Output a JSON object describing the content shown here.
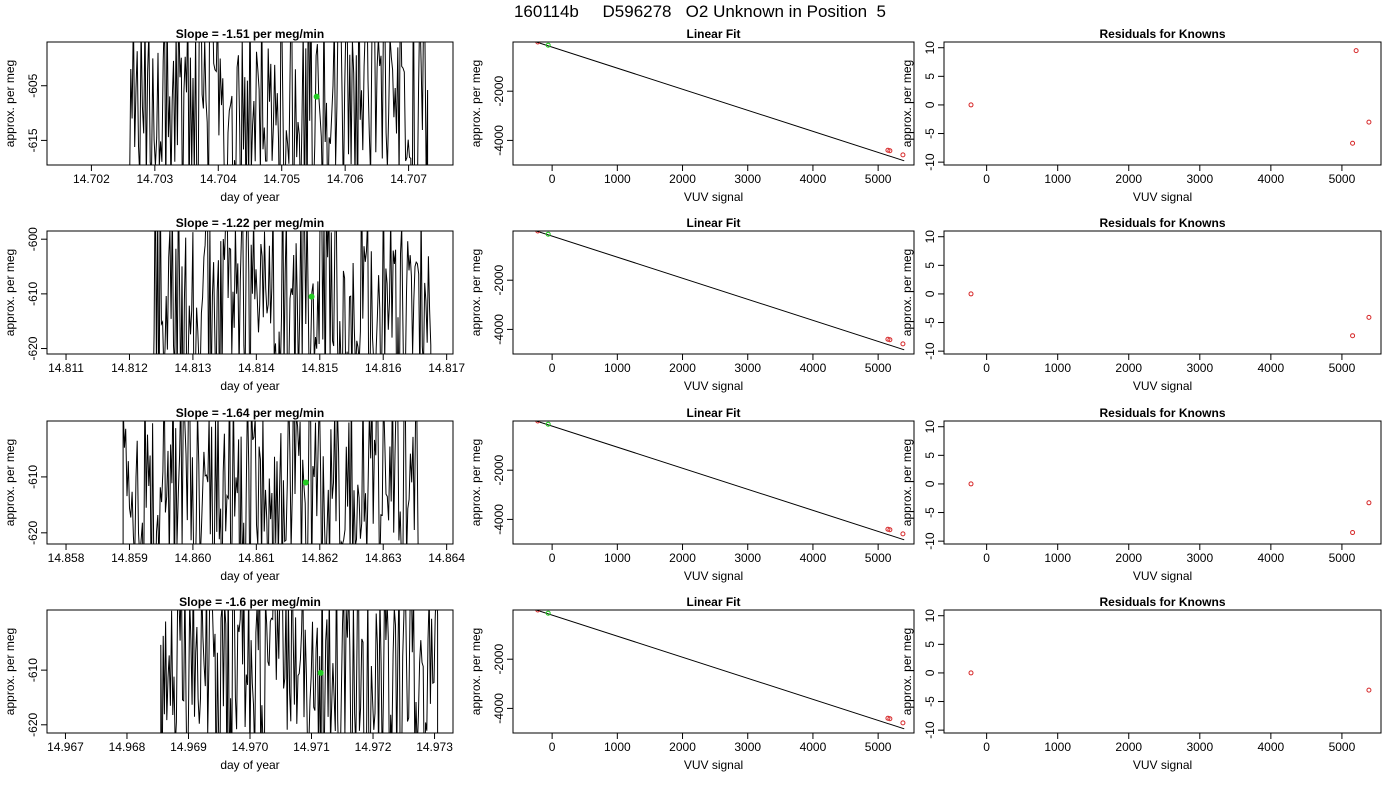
{
  "figure": {
    "title": "160114b     D596278   O2 Unknown in Position  5"
  },
  "style": {
    "trace": "#000000",
    "known_point": "#d62728",
    "unknown_point": "#22cc22",
    "fit_line": "#000000"
  },
  "chart_data": [
    {
      "type": "line",
      "row": 0,
      "panel": "time-series",
      "title": "Slope =  -1.51  per meg/min",
      "xlabel": "day of year",
      "ylabel": "approx. per meg",
      "xlim": [
        14.7013,
        14.7077
      ],
      "ylim": [
        -619.5,
        -597
      ],
      "xticks": [
        14.702,
        14.703,
        14.704,
        14.705,
        14.706,
        14.707
      ],
      "xtick_labels": [
        "14.702",
        "14.703",
        "14.704",
        "14.705",
        "14.706",
        "14.707"
      ],
      "yticks": [
        -605,
        -615
      ],
      "ytick_labels": [
        "-605",
        "-615"
      ],
      "trace_x_range": [
        14.7026,
        14.7073
      ],
      "highlight": {
        "x": 14.70555,
        "y": -607
      }
    },
    {
      "type": "scatter",
      "row": 0,
      "panel": "linear-fit",
      "title": "Linear Fit",
      "xlabel": "VUV signal",
      "ylabel": "approx. per meg",
      "xlim": [
        -600,
        5550
      ],
      "ylim": [
        -5000,
        0
      ],
      "xticks": [
        0,
        1000,
        2000,
        3000,
        4000,
        5000
      ],
      "xtick_labels": [
        "0",
        "1000",
        "2000",
        "3000",
        "4000",
        "5000"
      ],
      "yticks": [
        -2000,
        -4000
      ],
      "ytick_labels": [
        "-2000",
        "-4000"
      ],
      "fit_line": {
        "x": [
          -500,
          5400
        ],
        "y": [
          220,
          -4830
        ]
      },
      "knowns": {
        "x": [
          -220,
          5150,
          5180,
          5380
        ],
        "y": [
          0,
          -4400,
          -4420,
          -4590
        ]
      },
      "unknown": {
        "x": [
          -60
        ],
        "y": [
          -130
        ]
      }
    },
    {
      "type": "scatter",
      "row": 0,
      "panel": "residuals",
      "title": "Residuals for Knowns",
      "xlabel": "VUV signal",
      "ylabel": "approx. per meg",
      "xlim": [
        -600,
        5550
      ],
      "ylim": [
        -10.5,
        11
      ],
      "xticks": [
        0,
        1000,
        2000,
        3000,
        4000,
        5000
      ],
      "xtick_labels": [
        "0",
        "1000",
        "2000",
        "3000",
        "4000",
        "5000"
      ],
      "yticks": [
        10,
        5,
        0,
        -5,
        -10
      ],
      "ytick_labels": [
        "10",
        "5",
        "0",
        "-5",
        "-10"
      ],
      "points": {
        "x": [
          -220,
          5200,
          5150,
          5380
        ],
        "y": [
          0,
          9.5,
          -6.7,
          -3
        ]
      }
    },
    {
      "type": "line",
      "row": 1,
      "panel": "time-series",
      "title": "Slope =  -1.22  per meg/min",
      "xlabel": "day of year",
      "ylabel": "approx. per meg",
      "xlim": [
        14.8107,
        14.8171
      ],
      "ylim": [
        -621,
        -598.5
      ],
      "xticks": [
        14.811,
        14.812,
        14.813,
        14.814,
        14.815,
        14.816,
        14.817
      ],
      "xtick_labels": [
        "14.811",
        "14.812",
        "14.813",
        "14.814",
        "14.815",
        "14.816",
        "14.817"
      ],
      "yticks": [
        -600,
        -610,
        -620
      ],
      "ytick_labels": [
        "-600",
        "-610",
        "-620"
      ],
      "trace_x_range": [
        14.81235,
        14.81675
      ],
      "highlight": {
        "x": 14.81487,
        "y": -610.5
      }
    },
    {
      "type": "scatter",
      "row": 1,
      "panel": "linear-fit",
      "title": "Linear Fit",
      "xlabel": "VUV signal",
      "ylabel": "approx. per meg",
      "xlim": [
        -600,
        5550
      ],
      "ylim": [
        -5000,
        0
      ],
      "xticks": [
        0,
        1000,
        2000,
        3000,
        4000,
        5000
      ],
      "xtick_labels": [
        "0",
        "1000",
        "2000",
        "3000",
        "4000",
        "5000"
      ],
      "yticks": [
        -2000,
        -4000
      ],
      "ytick_labels": [
        "-2000",
        "-4000"
      ],
      "fit_line": {
        "x": [
          -500,
          5400
        ],
        "y": [
          220,
          -4830
        ]
      },
      "knowns": {
        "x": [
          -220,
          5150,
          5180,
          5380
        ],
        "y": [
          0,
          -4400,
          -4420,
          -4590
        ]
      },
      "unknown": {
        "x": [
          -60
        ],
        "y": [
          -130
        ]
      }
    },
    {
      "type": "scatter",
      "row": 1,
      "panel": "residuals",
      "title": "Residuals for Knowns",
      "xlabel": "VUV signal",
      "ylabel": "approx. per meg",
      "xlim": [
        -600,
        5550
      ],
      "ylim": [
        -10.5,
        11
      ],
      "xticks": [
        0,
        1000,
        2000,
        3000,
        4000,
        5000
      ],
      "xtick_labels": [
        "0",
        "1000",
        "2000",
        "3000",
        "4000",
        "5000"
      ],
      "yticks": [
        10,
        5,
        0,
        -5,
        -10
      ],
      "ytick_labels": [
        "10",
        "5",
        "0",
        "-5",
        "-10"
      ],
      "points": {
        "x": [
          -220,
          5150,
          5380
        ],
        "y": [
          0,
          -7.3,
          -4.1
        ]
      }
    },
    {
      "type": "line",
      "row": 2,
      "panel": "time-series",
      "title": "Slope =  -1.64  per meg/min",
      "xlabel": "day of year",
      "ylabel": "approx. per meg",
      "xlim": [
        14.8577,
        14.8641
      ],
      "ylim": [
        -622,
        -600
      ],
      "xticks": [
        14.858,
        14.859,
        14.86,
        14.861,
        14.862,
        14.863,
        14.864
      ],
      "xtick_labels": [
        "14.858",
        "14.859",
        "14.860",
        "14.861",
        "14.862",
        "14.863",
        "14.864"
      ],
      "yticks": [
        -610,
        -620
      ],
      "ytick_labels": [
        "-610",
        "-620"
      ],
      "trace_x_range": [
        14.8589,
        14.86355
      ],
      "highlight": {
        "x": 14.86178,
        "y": -611
      }
    },
    {
      "type": "scatter",
      "row": 2,
      "panel": "linear-fit",
      "title": "Linear Fit",
      "xlabel": "VUV signal",
      "ylabel": "approx. per meg",
      "xlim": [
        -600,
        5550
      ],
      "ylim": [
        -5000,
        0
      ],
      "xticks": [
        0,
        1000,
        2000,
        3000,
        4000,
        5000
      ],
      "xtick_labels": [
        "0",
        "1000",
        "2000",
        "3000",
        "4000",
        "5000"
      ],
      "yticks": [
        -2000,
        -4000
      ],
      "ytick_labels": [
        "-2000",
        "-4000"
      ],
      "fit_line": {
        "x": [
          -500,
          5400
        ],
        "y": [
          220,
          -4830
        ]
      },
      "knowns": {
        "x": [
          -220,
          5150,
          5180,
          5380
        ],
        "y": [
          0,
          -4400,
          -4420,
          -4590
        ]
      },
      "unknown": {
        "x": [
          -60
        ],
        "y": [
          -130
        ]
      }
    },
    {
      "type": "scatter",
      "row": 2,
      "panel": "residuals",
      "title": "Residuals for Knowns",
      "xlabel": "VUV signal",
      "ylabel": "approx. per meg",
      "xlim": [
        -600,
        5550
      ],
      "ylim": [
        -10.5,
        11
      ],
      "xticks": [
        0,
        1000,
        2000,
        3000,
        4000,
        5000
      ],
      "xtick_labels": [
        "0",
        "1000",
        "2000",
        "3000",
        "4000",
        "5000"
      ],
      "yticks": [
        10,
        5,
        0,
        -5,
        -10
      ],
      "ytick_labels": [
        "10",
        "5",
        "0",
        "-5",
        "-10"
      ],
      "points": {
        "x": [
          -220,
          5150,
          5380
        ],
        "y": [
          0,
          -8.5,
          -3.3
        ]
      }
    },
    {
      "type": "line",
      "row": 3,
      "panel": "time-series",
      "title": "Slope =  -1.6  per meg/min",
      "xlabel": "day of year",
      "ylabel": "approx. per meg",
      "xlim": [
        14.9667,
        14.9733
      ],
      "ylim": [
        -621.5,
        -599
      ],
      "xticks": [
        14.967,
        14.968,
        14.969,
        14.97,
        14.971,
        14.972,
        14.973
      ],
      "xtick_labels": [
        "14.967",
        "14.968",
        "14.969",
        "14.970",
        "14.971",
        "14.972",
        "14.973"
      ],
      "yticks": [
        -610,
        -620
      ],
      "ytick_labels": [
        "-610",
        "-620"
      ],
      "trace_x_range": [
        14.96855,
        14.97305
      ],
      "highlight": {
        "x": 14.97115,
        "y": -610.5
      }
    },
    {
      "type": "scatter",
      "row": 3,
      "panel": "linear-fit",
      "title": "Linear Fit",
      "xlabel": "VUV signal",
      "ylabel": "approx. per meg",
      "xlim": [
        -600,
        5550
      ],
      "ylim": [
        -5000,
        0
      ],
      "xticks": [
        0,
        1000,
        2000,
        3000,
        4000,
        5000
      ],
      "xtick_labels": [
        "0",
        "1000",
        "2000",
        "3000",
        "4000",
        "5000"
      ],
      "yticks": [
        -2000,
        -4000
      ],
      "ytick_labels": [
        "-2000",
        "-4000"
      ],
      "fit_line": {
        "x": [
          -500,
          5400
        ],
        "y": [
          220,
          -4830
        ]
      },
      "knowns": {
        "x": [
          -220,
          5150,
          5180,
          5380
        ],
        "y": [
          0,
          -4400,
          -4420,
          -4590
        ]
      },
      "unknown": {
        "x": [
          -60
        ],
        "y": [
          -130
        ]
      }
    },
    {
      "type": "scatter",
      "row": 3,
      "panel": "residuals",
      "title": "Residuals for Knowns",
      "xlabel": "VUV signal",
      "ylabel": "approx. per meg",
      "xlim": [
        -600,
        5550
      ],
      "ylim": [
        -10.5,
        11
      ],
      "xticks": [
        0,
        1000,
        2000,
        3000,
        4000,
        5000
      ],
      "xtick_labels": [
        "0",
        "1000",
        "2000",
        "3000",
        "4000",
        "5000"
      ],
      "yticks": [
        10,
        5,
        0,
        -5,
        -10
      ],
      "ytick_labels": [
        "10",
        "5",
        "0",
        "-5",
        "-10"
      ],
      "points": {
        "x": [
          -220,
          5380
        ],
        "y": [
          0,
          -3
        ]
      }
    }
  ]
}
